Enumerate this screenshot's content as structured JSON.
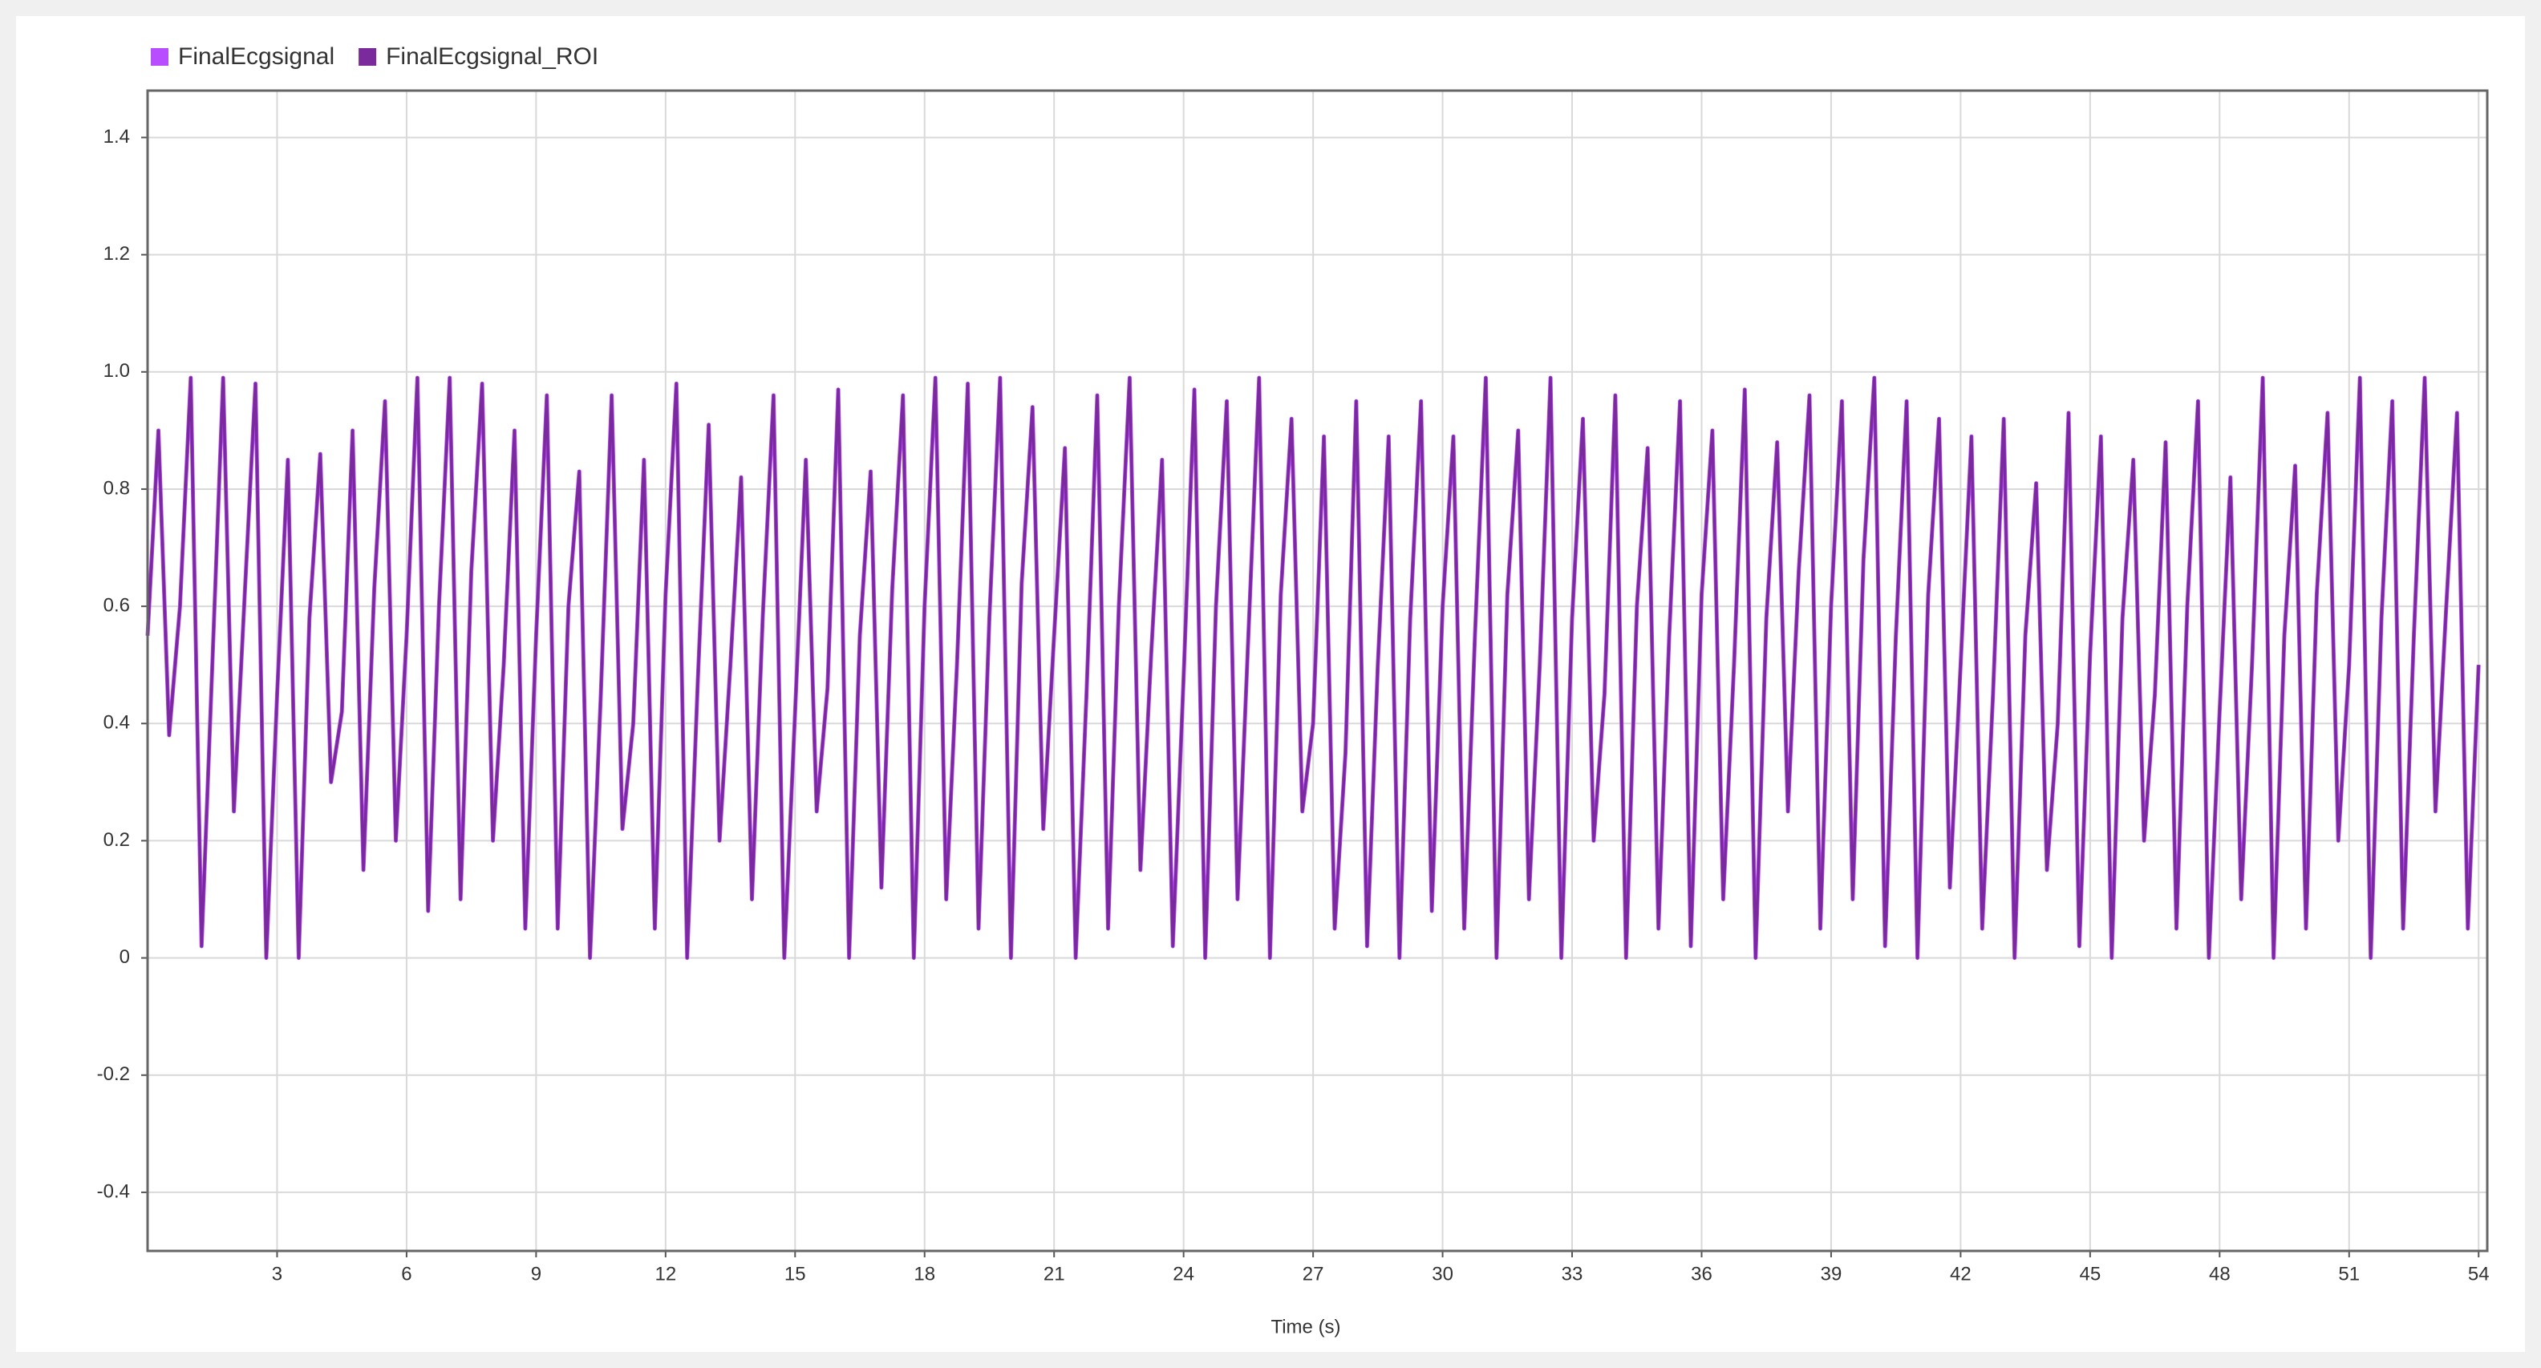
{
  "chart_data": {
    "type": "line",
    "xlabel": "Time (s)",
    "legend": "top-left",
    "grid": true,
    "xlim": [
      0,
      54.2
    ],
    "xticks": [
      3,
      6,
      9,
      12,
      15,
      18,
      21,
      24,
      27,
      30,
      33,
      36,
      39,
      42,
      45,
      48,
      51,
      54
    ],
    "ylim": [
      -0.5,
      1.48
    ],
    "yticks": [
      -0.4,
      -0.2,
      0,
      0.2,
      0.4,
      0.6,
      0.8,
      {
        "value": 1,
        "label": "1.0"
      },
      1.2,
      1.4
    ],
    "x": [
      0,
      0.25,
      0.5,
      0.75,
      1,
      1.25,
      1.5,
      1.75,
      2,
      2.25,
      2.5,
      2.75,
      3,
      3.25,
      3.5,
      3.75,
      4,
      4.25,
      4.5,
      4.75,
      5,
      5.25,
      5.5,
      5.75,
      6,
      6.25,
      6.5,
      6.75,
      7,
      7.25,
      7.5,
      7.75,
      8,
      8.25,
      8.5,
      8.75,
      9,
      9.25,
      9.5,
      9.75,
      10,
      10.25,
      10.5,
      10.75,
      11,
      11.25,
      11.5,
      11.75,
      12,
      12.25,
      12.5,
      12.75,
      13,
      13.25,
      13.5,
      13.75,
      14,
      14.25,
      14.5,
      14.75,
      15,
      15.25,
      15.5,
      15.75,
      16,
      16.25,
      16.5,
      16.75,
      17,
      17.25,
      17.5,
      17.75,
      18,
      18.25,
      18.5,
      18.75,
      19,
      19.25,
      19.5,
      19.75,
      20,
      20.25,
      20.5,
      20.75,
      21,
      21.25,
      21.5,
      21.75,
      22,
      22.25,
      22.5,
      22.75,
      23,
      23.25,
      23.5,
      23.75,
      24,
      24.25,
      24.5,
      24.75,
      25,
      25.25,
      25.5,
      25.75,
      26,
      26.25,
      26.5,
      26.75,
      27,
      27.25,
      27.5,
      27.75,
      28,
      28.25,
      28.5,
      28.75,
      29,
      29.25,
      29.5,
      29.75,
      30,
      30.25,
      30.5,
      30.75,
      31,
      31.25,
      31.5,
      31.75,
      32,
      32.25,
      32.5,
      32.75,
      33,
      33.25,
      33.5,
      33.75,
      34,
      34.25,
      34.5,
      34.75,
      35,
      35.25,
      35.5,
      35.75,
      36,
      36.25,
      36.5,
      36.75,
      37,
      37.25,
      37.5,
      37.75,
      38,
      38.25,
      38.5,
      38.75,
      39,
      39.25,
      39.5,
      39.75,
      40,
      40.25,
      40.5,
      40.75,
      41,
      41.25,
      41.5,
      41.75,
      42,
      42.25,
      42.5,
      42.75,
      43,
      43.25,
      43.5,
      43.75,
      44,
      44.25,
      44.5,
      44.75,
      45,
      45.25,
      45.5,
      45.75,
      46,
      46.25,
      46.5,
      46.75,
      47,
      47.25,
      47.5,
      47.75,
      48,
      48.25,
      48.5,
      48.75,
      49,
      49.25,
      49.5,
      49.75,
      50,
      50.25,
      50.5,
      50.75,
      51,
      51.25,
      51.5,
      51.75,
      52,
      52.25,
      52.5,
      52.75,
      53,
      53.25,
      53.5,
      53.75,
      54
    ],
    "series": [
      {
        "name": "FinalEcgsignal",
        "color": "#b84cff",
        "values": [
          0.55,
          0.9,
          0.38,
          0.6,
          0.99,
          0.02,
          0.5,
          0.99,
          0.25,
          0.62,
          0.98,
          0,
          0.45,
          0.85,
          0,
          0.58,
          0.86,
          0.3,
          0.42,
          0.9,
          0.15,
          0.63,
          0.95,
          0.2,
          0.55,
          0.99,
          0.08,
          0.6,
          0.99,
          0.1,
          0.66,
          0.98,
          0.2,
          0.5,
          0.9,
          0.05,
          0.55,
          0.96,
          0.05,
          0.6,
          0.83,
          0,
          0.45,
          0.96,
          0.22,
          0.4,
          0.85,
          0.05,
          0.62,
          0.98,
          0,
          0.48,
          0.91,
          0.2,
          0.5,
          0.82,
          0.1,
          0.58,
          0.96,
          0,
          0.42,
          0.85,
          0.25,
          0.46,
          0.97,
          0,
          0.55,
          0.83,
          0.12,
          0.63,
          0.96,
          0,
          0.6,
          0.99,
          0.1,
          0.5,
          0.98,
          0.05,
          0.58,
          0.99,
          0,
          0.64,
          0.94,
          0.22,
          0.55,
          0.87,
          0,
          0.45,
          0.96,
          0.05,
          0.6,
          0.99,
          0.15,
          0.52,
          0.85,
          0.02,
          0.48,
          0.97,
          0,
          0.6,
          0.95,
          0.1,
          0.55,
          0.99,
          0,
          0.62,
          0.92,
          0.25,
          0.4,
          0.89,
          0.05,
          0.35,
          0.95,
          0.02,
          0.5,
          0.89,
          0,
          0.58,
          0.95,
          0.08,
          0.6,
          0.89,
          0.05,
          0.55,
          0.99,
          0,
          0.62,
          0.9,
          0.1,
          0.5,
          0.99,
          0,
          0.58,
          0.92,
          0.2,
          0.45,
          0.96,
          0,
          0.6,
          0.87,
          0.05,
          0.55,
          0.95,
          0.02,
          0.62,
          0.9,
          0.1,
          0.5,
          0.97,
          0,
          0.58,
          0.88,
          0.25,
          0.66,
          0.96,
          0.05,
          0.6,
          0.95,
          0.1,
          0.68,
          0.99,
          0.02,
          0.55,
          0.95,
          0,
          0.62,
          0.92,
          0.12,
          0.5,
          0.89,
          0.05,
          0.45,
          0.92,
          0,
          0.55,
          0.81,
          0.15,
          0.4,
          0.93,
          0.02,
          0.52,
          0.89,
          0,
          0.58,
          0.85,
          0.2,
          0.45,
          0.88,
          0.05,
          0.6,
          0.95,
          0,
          0.42,
          0.82,
          0.1,
          0.5,
          0.99,
          0,
          0.55,
          0.84,
          0.05,
          0.62,
          0.93,
          0.2,
          0.5,
          0.99,
          0,
          0.58,
          0.95,
          0.05,
          0.55,
          0.99,
          0.25,
          0.6,
          0.93,
          0.05,
          0.5
        ]
      },
      {
        "name": "FinalEcgsignal_ROI",
        "color": "#7a2a9c",
        "values": [
          0.55,
          0.9,
          0.38,
          0.6,
          0.99,
          0.02,
          0.5,
          0.99,
          0.25,
          0.62,
          0.98,
          0,
          0.45,
          0.85,
          0,
          0.58,
          0.86,
          0.3,
          0.42,
          0.9,
          0.15,
          0.63,
          0.95,
          0.2,
          0.55,
          0.99,
          0.08,
          0.6,
          0.99,
          0.1,
          0.66,
          0.98,
          0.2,
          0.5,
          0.9,
          0.05,
          0.55,
          0.96,
          0.05,
          0.6,
          0.83,
          0,
          0.45,
          0.96,
          0.22,
          0.4,
          0.85,
          0.05,
          0.62,
          0.98,
          0,
          0.48,
          0.91,
          0.2,
          0.5,
          0.82,
          0.1,
          0.58,
          0.96,
          0,
          0.42,
          0.85,
          0.25,
          0.46,
          0.97,
          0,
          0.55,
          0.83,
          0.12,
          0.63,
          0.96,
          0,
          0.6,
          0.99,
          0.1,
          0.5,
          0.98,
          0.05,
          0.58,
          0.99,
          0,
          0.64,
          0.94,
          0.22,
          0.55,
          0.87,
          0,
          0.45,
          0.96,
          0.05,
          0.6,
          0.99,
          0.15,
          0.52,
          0.85,
          0.02,
          0.48,
          0.97,
          0,
          0.6,
          0.95,
          0.1,
          0.55,
          0.99,
          0,
          0.62,
          0.92,
          0.25,
          0.4,
          0.89,
          0.05,
          0.35,
          0.95,
          0.02,
          0.5,
          0.89,
          0,
          0.58,
          0.95,
          0.08,
          0.6,
          0.89,
          0.05,
          0.55,
          0.99,
          0,
          0.62,
          0.9,
          0.1,
          0.5,
          0.99,
          0,
          0.58,
          0.92,
          0.2,
          0.45,
          0.96,
          0,
          0.6,
          0.87,
          0.05,
          0.55,
          0.95,
          0.02,
          0.62,
          0.9,
          0.1,
          0.5,
          0.97,
          0,
          0.58,
          0.88,
          0.25,
          0.66,
          0.96,
          0.05,
          0.6,
          0.95,
          0.1,
          0.68,
          0.99,
          0.02,
          0.55,
          0.95,
          0,
          0.62,
          0.92,
          0.12,
          0.5,
          0.89,
          0.05,
          0.45,
          0.92,
          0,
          0.55,
          0.81,
          0.15,
          0.4,
          0.93,
          0.02,
          0.52,
          0.89,
          0,
          0.58,
          0.85,
          0.2,
          0.45,
          0.88,
          0.05,
          0.6,
          0.95,
          0,
          0.42,
          0.82,
          0.1,
          0.5,
          0.99,
          0,
          0.55,
          0.84,
          0.05,
          0.62,
          0.93,
          0.2,
          0.5,
          0.99,
          0,
          0.58,
          0.95,
          0.05,
          0.55,
          0.99,
          0.25,
          0.6,
          0.93,
          0.05,
          0.5
        ]
      }
    ]
  }
}
